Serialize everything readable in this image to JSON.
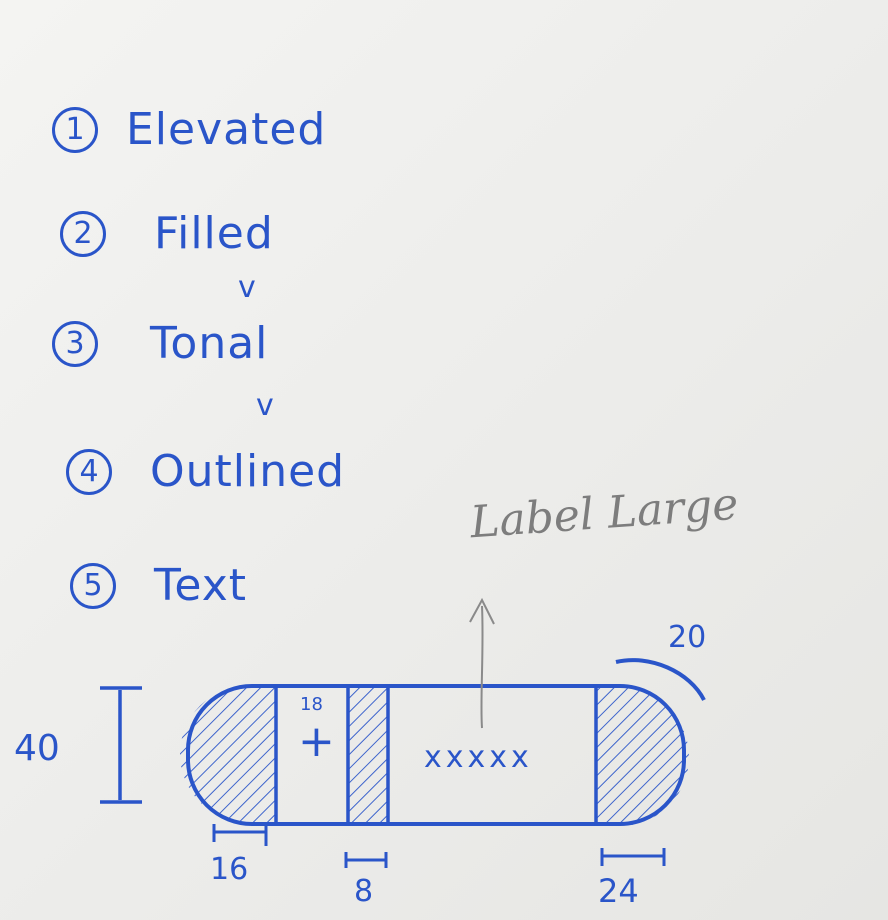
{
  "list": [
    {
      "number": "1",
      "label": "Elevated"
    },
    {
      "number": "2",
      "label": "Filled"
    },
    {
      "number": "3",
      "label": "Tonal"
    },
    {
      "number": "4",
      "label": "Outlined"
    },
    {
      "number": "5",
      "label": "Text"
    }
  ],
  "checks": [
    "v",
    "v"
  ],
  "button_diagram": {
    "height_label": "40",
    "icon_size_label": "18",
    "icon_glyph": "+",
    "text_placeholder": "xxxxx",
    "annotation": "Label Large",
    "corner_label": "20",
    "left_padding_label": "16",
    "gap_label": "8",
    "right_padding_label": "24"
  }
}
